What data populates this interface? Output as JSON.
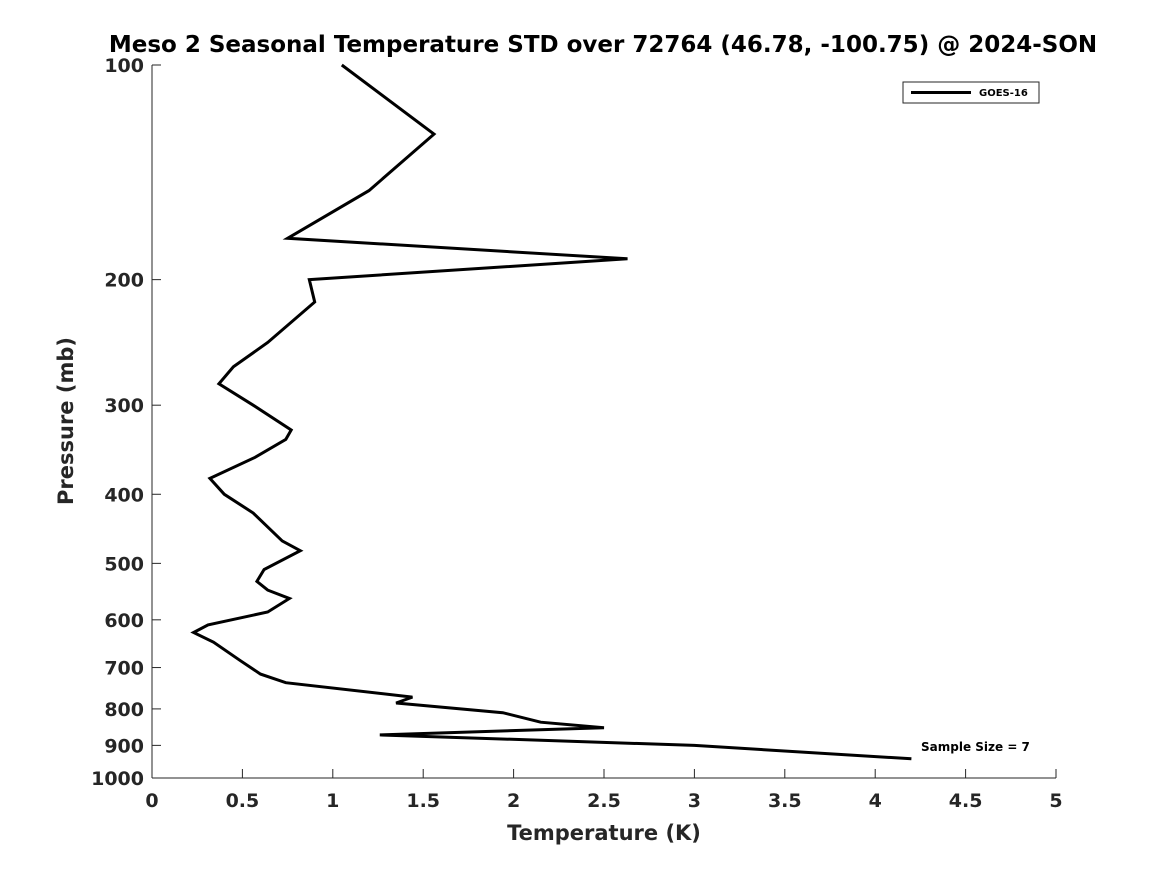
{
  "chart_data": {
    "type": "line",
    "title": "Meso 2 Seasonal Temperature STD over 72764 (46.78, -100.75) @ 2024-SON",
    "xlabel": "Temperature (K)",
    "ylabel": "Pressure (mb)",
    "xlim": [
      0,
      5
    ],
    "ylim": [
      100,
      1000
    ],
    "y_scale": "log",
    "y_reversed": true,
    "x_ticks": [
      0,
      0.5,
      1,
      1.5,
      2,
      2.5,
      3,
      3.5,
      4,
      4.5,
      5
    ],
    "x_tick_labels": [
      "0",
      "0.5",
      "1",
      "1.5",
      "2",
      "2.5",
      "3",
      "3.5",
      "4",
      "4.5",
      "5"
    ],
    "y_ticks": [
      100,
      200,
      300,
      400,
      500,
      600,
      700,
      800,
      900,
      1000
    ],
    "y_tick_labels": [
      "100",
      "200",
      "300",
      "400",
      "500",
      "600",
      "700",
      "800",
      "900",
      "1000"
    ],
    "grid": false,
    "legend_position": "top-right",
    "series": [
      {
        "name": "GOES-16",
        "color": "#000000",
        "points": [
          {
            "x": 1.05,
            "p": 100
          },
          {
            "x": 1.56,
            "p": 125
          },
          {
            "x": 1.2,
            "p": 150
          },
          {
            "x": 0.75,
            "p": 175
          },
          {
            "x": 2.63,
            "p": 187
          },
          {
            "x": 0.87,
            "p": 200
          },
          {
            "x": 0.9,
            "p": 215
          },
          {
            "x": 0.64,
            "p": 245
          },
          {
            "x": 0.45,
            "p": 265
          },
          {
            "x": 0.37,
            "p": 280
          },
          {
            "x": 0.56,
            "p": 300
          },
          {
            "x": 0.77,
            "p": 325
          },
          {
            "x": 0.74,
            "p": 335
          },
          {
            "x": 0.57,
            "p": 355
          },
          {
            "x": 0.32,
            "p": 380
          },
          {
            "x": 0.4,
            "p": 400
          },
          {
            "x": 0.56,
            "p": 425
          },
          {
            "x": 0.72,
            "p": 465
          },
          {
            "x": 0.82,
            "p": 480
          },
          {
            "x": 0.62,
            "p": 510
          },
          {
            "x": 0.58,
            "p": 530
          },
          {
            "x": 0.64,
            "p": 545
          },
          {
            "x": 0.76,
            "p": 560
          },
          {
            "x": 0.64,
            "p": 585
          },
          {
            "x": 0.31,
            "p": 610
          },
          {
            "x": 0.23,
            "p": 625
          },
          {
            "x": 0.34,
            "p": 645
          },
          {
            "x": 0.49,
            "p": 685
          },
          {
            "x": 0.6,
            "p": 715
          },
          {
            "x": 0.74,
            "p": 735
          },
          {
            "x": 1.44,
            "p": 770
          },
          {
            "x": 1.35,
            "p": 785
          },
          {
            "x": 1.94,
            "p": 810
          },
          {
            "x": 2.15,
            "p": 835
          },
          {
            "x": 2.5,
            "p": 850
          },
          {
            "x": 1.26,
            "p": 870
          },
          {
            "x": 3.0,
            "p": 900
          },
          {
            "x": 4.2,
            "p": 940
          }
        ]
      }
    ],
    "annotations": [
      {
        "text": "Sample Size = 7"
      }
    ]
  }
}
